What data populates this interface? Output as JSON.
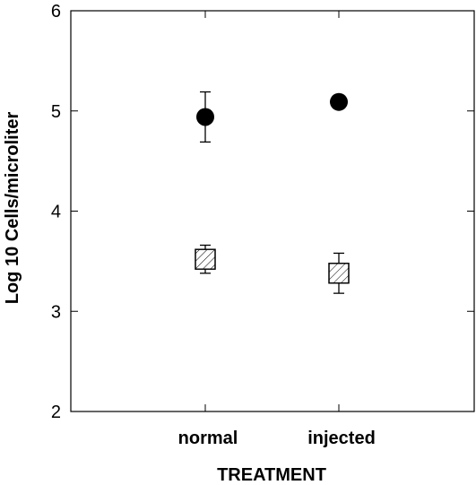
{
  "chart_data": {
    "type": "scatter",
    "title": "",
    "xlabel": "TREATMENT",
    "ylabel": "Log 10 Cells/microliter",
    "categories": [
      "normal",
      "injected"
    ],
    "ylim": [
      2,
      6
    ],
    "yticks": [
      "2",
      "3",
      "4",
      "5",
      "6"
    ],
    "grid": false,
    "legend": "none",
    "series": [
      {
        "marker": "filled-circle",
        "color": "#000000",
        "values": [
          4.94,
          5.09
        ],
        "error_low": [
          4.69,
          5.09
        ],
        "error_high": [
          5.19,
          5.09
        ]
      },
      {
        "marker": "hatched-square",
        "color": "#000000",
        "values": [
          3.52,
          3.38
        ],
        "error_low": [
          3.38,
          3.18
        ],
        "error_high": [
          3.66,
          3.58
        ]
      }
    ]
  }
}
